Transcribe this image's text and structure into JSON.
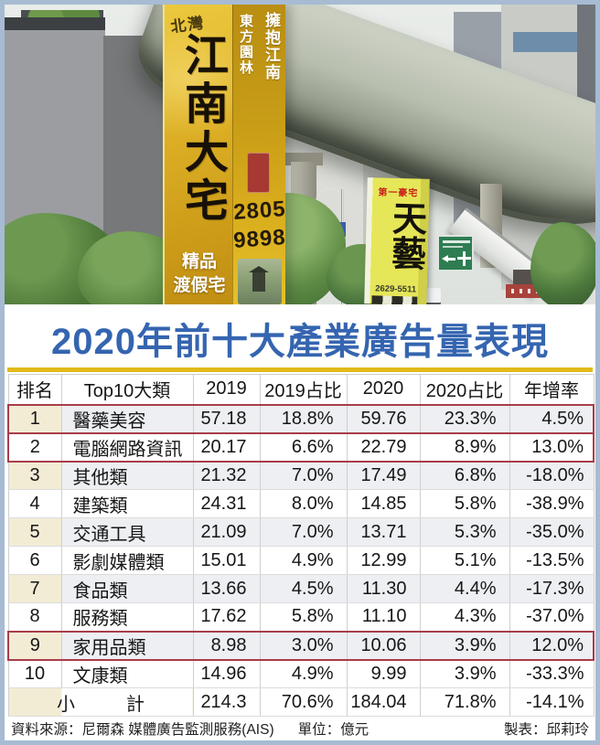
{
  "title": "2020年前十大產業廣告量表現",
  "photo": {
    "billboard_main": {
      "logo": "北灣",
      "headline": "江南大宅",
      "side_text_outer": "東方園林",
      "side_text_inner": "擁抱江南",
      "phone_line1": "2805",
      "phone_line2": "9898",
      "bottom_line1": "精品",
      "bottom_line2": "渡假宅"
    },
    "billboard_secondary": {
      "tagline": "第一豪宅",
      "headline": "天藝",
      "phone": "2629-5511"
    }
  },
  "chart_data": {
    "type": "table",
    "title": "2020年前十大產業廣告量表現",
    "unit": "億元",
    "columns": [
      "排名",
      "Top10大類",
      "2019",
      "2019占比",
      "2020",
      "2020占比",
      "年增率"
    ],
    "rows": [
      [
        "1",
        "醫藥美容",
        "57.18",
        "18.8%",
        "59.76",
        "23.3%",
        "4.5%"
      ],
      [
        "2",
        "電腦網路資訊",
        "20.17",
        "6.6%",
        "22.79",
        "8.9%",
        "13.0%"
      ],
      [
        "3",
        "其他類",
        "21.32",
        "7.0%",
        "17.49",
        "6.8%",
        "-18.0%"
      ],
      [
        "4",
        "建築類",
        "24.31",
        "8.0%",
        "14.85",
        "5.8%",
        "-38.9%"
      ],
      [
        "5",
        "交通工具",
        "21.09",
        "7.0%",
        "13.71",
        "5.3%",
        "-35.0%"
      ],
      [
        "6",
        "影劇媒體類",
        "15.01",
        "4.9%",
        "12.99",
        "5.1%",
        "-13.5%"
      ],
      [
        "7",
        "食品類",
        "13.66",
        "4.5%",
        "11.30",
        "4.4%",
        "-17.3%"
      ],
      [
        "8",
        "服務類",
        "17.62",
        "5.8%",
        "11.10",
        "4.3%",
        "-37.0%"
      ],
      [
        "9",
        "家用品類",
        "8.98",
        "3.0%",
        "10.06",
        "3.9%",
        "12.0%"
      ],
      [
        "10",
        "文康類",
        "14.96",
        "4.9%",
        "9.99",
        "3.9%",
        "-33.3%"
      ]
    ],
    "total_row": {
      "label": "小　計",
      "values": [
        "214.3",
        "70.6%",
        "184.04",
        "71.8%",
        "-14.1%"
      ]
    },
    "highlighted_rows": [
      0,
      1,
      8
    ]
  },
  "footer": {
    "source": "資料來源：尼爾森  媒體廣告監測服務(AIS)",
    "unit": "單位：億元",
    "credit": "製表：邱莉玲"
  },
  "colors": {
    "title_blue": "#3565b0",
    "gold_rule": "#e2ba1a",
    "highlight_red": "#a83d49",
    "rank_column_cream": "#f3ecd5",
    "alt_row": "#edeff2",
    "billboard_yellow": "#ddb026",
    "billboard_secondary_yellow": "#e6e659",
    "frame_blue": "#a7bbd3"
  }
}
